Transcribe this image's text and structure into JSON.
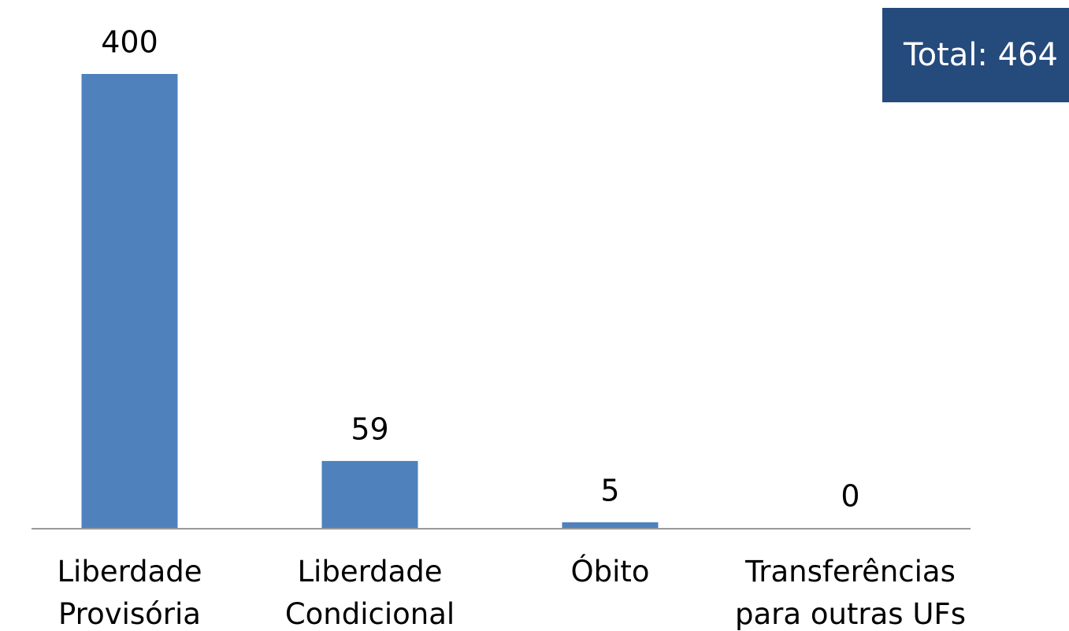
{
  "chart_data": {
    "type": "bar",
    "categories": [
      "Liberdade\nProvisória",
      "Liberdade\nCondicional",
      "Óbito",
      "Transferências\npara outras UFs"
    ],
    "values": [
      400,
      59,
      5,
      0
    ],
    "color": "#4f81bd",
    "ylim": [
      0,
      400
    ],
    "annotation": "Total: 464"
  }
}
